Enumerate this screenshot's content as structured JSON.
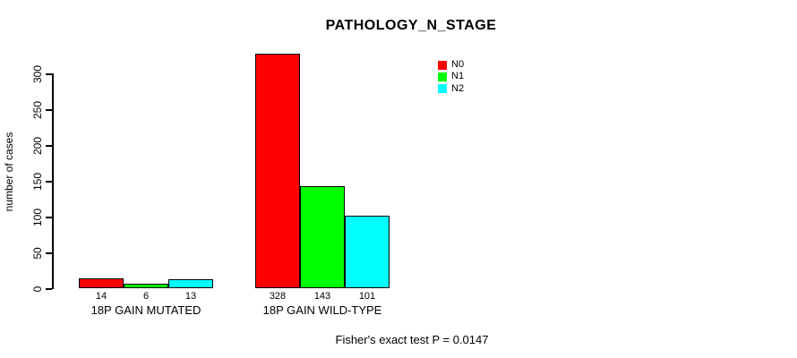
{
  "chart_data": {
    "type": "bar",
    "title": "PATHOLOGY_N_STAGE",
    "ylabel": "number of cases",
    "xlabel": "",
    "categories": [
      "18P GAIN MUTATED",
      "18P GAIN WILD-TYPE"
    ],
    "series": [
      {
        "name": "N0",
        "color": "#ff0000",
        "values": [
          14,
          328
        ]
      },
      {
        "name": "N1",
        "color": "#00ff00",
        "values": [
          6,
          143
        ]
      },
      {
        "name": "N2",
        "color": "#00ffff",
        "values": [
          13,
          101
        ]
      }
    ],
    "bar_value_labels": [
      [
        "14",
        "6",
        "13"
      ],
      [
        "328",
        "143",
        "101"
      ]
    ],
    "yticks": [
      "0",
      "50",
      "100",
      "150",
      "200",
      "250",
      "300"
    ],
    "ylim": [
      0,
      330
    ],
    "grid": false,
    "legend_position": "top-right",
    "legend_entries": [
      {
        "label": "N0",
        "color": "#ff0000"
      },
      {
        "label": "N1",
        "color": "#00ff00"
      },
      {
        "label": "N2",
        "color": "#00ffff"
      }
    ],
    "annotation": "Fisher's exact test P = 0.0147"
  },
  "colors": {
    "background": "#ffffff",
    "axis": "#000000",
    "bar_border": "#000000",
    "text": "#000000"
  }
}
